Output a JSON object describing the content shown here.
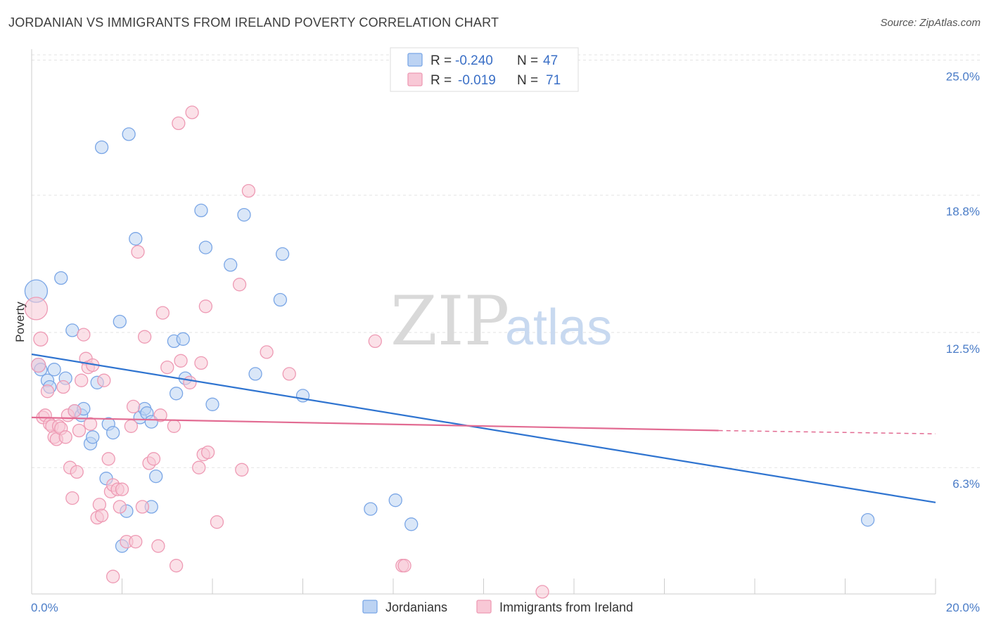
{
  "title": "JORDANIAN VS IMMIGRANTS FROM IRELAND POVERTY CORRELATION CHART",
  "source": "Source: ZipAtlas.com",
  "watermark": {
    "zip": "ZIP",
    "atlas": "atlas"
  },
  "chart_data": {
    "type": "scatter",
    "ylabel": "Poverty",
    "xlim": [
      0,
      20
    ],
    "ylim": [
      0.5,
      25.5
    ],
    "y_ticks": [
      {
        "value": 6.3,
        "label": "6.3%"
      },
      {
        "value": 12.5,
        "label": "12.5%"
      },
      {
        "value": 18.8,
        "label": "18.8%"
      },
      {
        "value": 25.0,
        "label": "25.0%"
      }
    ],
    "x_tick_labels": {
      "min": "0.0%",
      "max": "20.0%"
    },
    "grid": true,
    "legend_top": {
      "rows": [
        {
          "r_label": "R =",
          "r_value": "-0.240",
          "n_label": "N =",
          "n_value": "47"
        },
        {
          "r_label": "R =",
          "r_value": "-0.019",
          "n_label": "N =",
          "n_value": "71"
        }
      ]
    },
    "series": [
      {
        "name": "Jordanians",
        "color": "#7aa6e6",
        "fill": "#bcd3f3",
        "line_color": "#2f74d0",
        "trend": {
          "x0": 0,
          "y0": 11.5,
          "x1": 20,
          "y1": 4.7
        },
        "points": [
          [
            0.1,
            14.4,
            16
          ],
          [
            0.15,
            11.0,
            10
          ],
          [
            0.2,
            10.8,
            9
          ],
          [
            0.35,
            10.3,
            9
          ],
          [
            0.4,
            10.0,
            9
          ],
          [
            0.5,
            10.8,
            9
          ],
          [
            0.65,
            15.0,
            9
          ],
          [
            0.75,
            10.4,
            9
          ],
          [
            0.9,
            12.6,
            9
          ],
          [
            0.95,
            8.9,
            9
          ],
          [
            1.1,
            8.7,
            9
          ],
          [
            1.15,
            9.0,
            9
          ],
          [
            1.3,
            7.4,
            9
          ],
          [
            1.35,
            7.7,
            9
          ],
          [
            1.45,
            10.2,
            9
          ],
          [
            1.55,
            21.0,
            9
          ],
          [
            1.65,
            5.8,
            9
          ],
          [
            1.7,
            8.3,
            9
          ],
          [
            1.8,
            7.9,
            9
          ],
          [
            1.95,
            13.0,
            9
          ],
          [
            2.0,
            2.7,
            9
          ],
          [
            2.1,
            4.3,
            9
          ],
          [
            2.15,
            21.6,
            9
          ],
          [
            2.3,
            16.8,
            9
          ],
          [
            2.4,
            8.6,
            9
          ],
          [
            2.5,
            9.0,
            9
          ],
          [
            2.55,
            8.8,
            9
          ],
          [
            2.65,
            8.4,
            9
          ],
          [
            2.65,
            4.5,
            9
          ],
          [
            2.75,
            5.9,
            9
          ],
          [
            3.15,
            12.1,
            9
          ],
          [
            3.2,
            9.7,
            9
          ],
          [
            3.35,
            12.2,
            9
          ],
          [
            3.4,
            10.4,
            9
          ],
          [
            3.75,
            18.1,
            9
          ],
          [
            3.85,
            16.4,
            9
          ],
          [
            4.0,
            9.2,
            9
          ],
          [
            4.4,
            15.6,
            9
          ],
          [
            4.7,
            17.9,
            9
          ],
          [
            4.95,
            10.6,
            9
          ],
          [
            5.5,
            14.0,
            9
          ],
          [
            5.55,
            16.1,
            9
          ],
          [
            6.0,
            9.6,
            9
          ],
          [
            7.5,
            4.4,
            9
          ],
          [
            8.05,
            4.8,
            9
          ],
          [
            8.4,
            3.7,
            9
          ],
          [
            18.5,
            3.9,
            9
          ]
        ]
      },
      {
        "name": "Immigrants from Ireland",
        "color": "#ee9ab4",
        "fill": "#f8c8d6",
        "line_color": "#e26b92",
        "trend": {
          "x0": 0,
          "y0": 8.6,
          "x1": 15.2,
          "y1": 8.0
        },
        "trend_dashed": {
          "x0": 15.2,
          "y0": 8.0,
          "x1": 20,
          "y1": 7.85
        },
        "points": [
          [
            0.1,
            13.6,
            16
          ],
          [
            0.15,
            11.0,
            10
          ],
          [
            0.2,
            12.2,
            10
          ],
          [
            0.25,
            8.6,
            9
          ],
          [
            0.3,
            8.7,
            9
          ],
          [
            0.35,
            9.8,
            9
          ],
          [
            0.4,
            8.3,
            9
          ],
          [
            0.45,
            8.2,
            9
          ],
          [
            0.5,
            7.7,
            9
          ],
          [
            0.55,
            7.6,
            9
          ],
          [
            0.6,
            8.2,
            9
          ],
          [
            0.65,
            8.1,
            9
          ],
          [
            0.7,
            10.0,
            9
          ],
          [
            0.75,
            7.7,
            9
          ],
          [
            0.8,
            8.7,
            9
          ],
          [
            0.85,
            6.3,
            9
          ],
          [
            0.9,
            4.9,
            9
          ],
          [
            0.95,
            8.9,
            9
          ],
          [
            1.0,
            6.1,
            9
          ],
          [
            1.05,
            8.0,
            9
          ],
          [
            1.1,
            10.3,
            9
          ],
          [
            1.15,
            12.4,
            9
          ],
          [
            1.2,
            11.3,
            9
          ],
          [
            1.25,
            10.9,
            9
          ],
          [
            1.3,
            8.3,
            9
          ],
          [
            1.35,
            11.0,
            9
          ],
          [
            1.45,
            4.0,
            9
          ],
          [
            1.5,
            4.6,
            9
          ],
          [
            1.55,
            4.1,
            9
          ],
          [
            1.6,
            10.3,
            9
          ],
          [
            1.7,
            6.7,
            9
          ],
          [
            1.75,
            5.2,
            9
          ],
          [
            1.8,
            5.5,
            9
          ],
          [
            1.8,
            1.3,
            9
          ],
          [
            1.9,
            5.3,
            9
          ],
          [
            1.95,
            4.5,
            9
          ],
          [
            2.0,
            5.3,
            9
          ],
          [
            2.1,
            2.9,
            9
          ],
          [
            2.2,
            8.2,
            9
          ],
          [
            2.25,
            9.1,
            9
          ],
          [
            2.3,
            2.9,
            9
          ],
          [
            2.35,
            16.2,
            9
          ],
          [
            2.45,
            4.5,
            9
          ],
          [
            2.5,
            12.3,
            9
          ],
          [
            2.6,
            6.5,
            9
          ],
          [
            2.7,
            6.7,
            9
          ],
          [
            2.8,
            2.7,
            9
          ],
          [
            2.85,
            8.7,
            9
          ],
          [
            2.9,
            13.4,
            9
          ],
          [
            3.0,
            10.9,
            9
          ],
          [
            3.15,
            8.2,
            9
          ],
          [
            3.2,
            1.8,
            9
          ],
          [
            3.25,
            22.1,
            9
          ],
          [
            3.3,
            11.2,
            9
          ],
          [
            3.5,
            10.2,
            9
          ],
          [
            3.55,
            22.6,
            9
          ],
          [
            3.7,
            6.3,
            9
          ],
          [
            3.75,
            11.1,
            9
          ],
          [
            3.8,
            6.9,
            9
          ],
          [
            3.85,
            13.7,
            9
          ],
          [
            3.9,
            7.0,
            9
          ],
          [
            4.1,
            3.8,
            9
          ],
          [
            4.6,
            14.7,
            9
          ],
          [
            4.65,
            6.2,
            9
          ],
          [
            4.8,
            19.0,
            9
          ],
          [
            5.2,
            11.6,
            9
          ],
          [
            5.7,
            10.6,
            9
          ],
          [
            7.6,
            12.1,
            9
          ],
          [
            8.2,
            1.8,
            9
          ],
          [
            11.3,
            0.6,
            9
          ],
          [
            8.25,
            1.8,
            9
          ]
        ]
      }
    ]
  }
}
